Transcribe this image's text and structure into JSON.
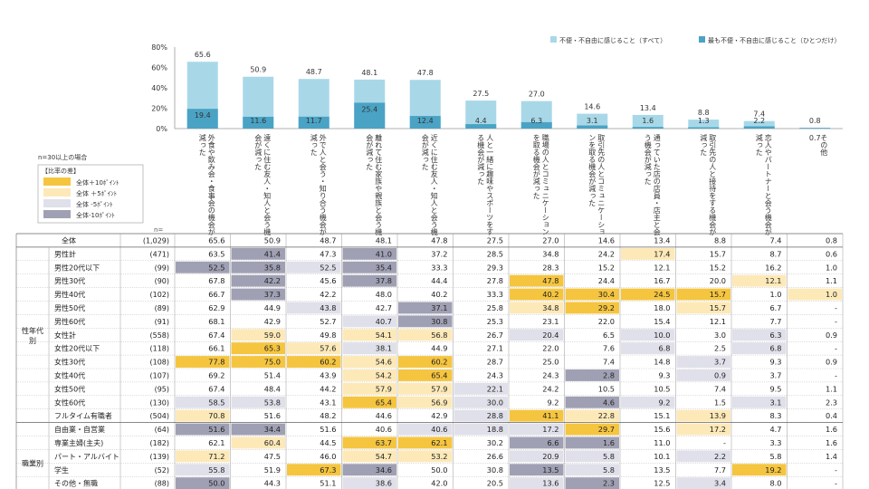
{
  "colors": {
    "bar_all": "#a8d8e8",
    "bar_most": "#4aa3c4",
    "high10": "#f5c540",
    "high5": "#fde9b8",
    "low5": "#e0e0ea",
    "low10": "#a0a0b4",
    "border": "#888888"
  },
  "chart_data": {
    "type": "bar",
    "ylim": [
      0,
      80
    ],
    "yticks": [
      "0%",
      "20%",
      "40%",
      "60%",
      "80%"
    ],
    "legend": {
      "all": "不便・不自由に感じること（すべて）",
      "most": "最も不便・不自由に感じること（ひとつだけ）"
    },
    "categories": [
      "外食や飲み会・食事会の機会が減った",
      "遠くに住む友人・知人と会う機会が減った",
      "外で人と会う・知り合う機会が減った",
      "離れて住む家族や親族と会う機会が減った",
      "近くに住む友人・知人と会う機会が減った",
      "人と一緒に趣味やスポーツをする機会が減った",
      "職場の人とコミュニケーションを取る機会が減った",
      "取引先の人とコミュニケーションを取る機会が減った",
      "通っていた店の店員・店主と会う機会が減った",
      "取引先の人と接待をする機会が減った",
      "恋人やパートナーと会う機会が減った",
      "その他"
    ],
    "series": [
      {
        "name": "不便・不自由に感じること（すべて）",
        "values": [
          65.6,
          50.9,
          48.7,
          48.1,
          47.8,
          27.5,
          27.0,
          14.6,
          13.4,
          8.8,
          7.4,
          0.8
        ]
      },
      {
        "name": "最も不便・不自由に感じること（ひとつだけ）",
        "values": [
          19.4,
          11.6,
          11.7,
          25.4,
          12.4,
          4.4,
          6.3,
          3.1,
          1.6,
          1.3,
          2.2,
          0.7
        ]
      }
    ]
  },
  "side": {
    "note": "n=30以上の場合",
    "legend_title": "【比率の差】",
    "legend_items": [
      "全体＋10ﾎﾟｲﾝﾄ",
      "全体 ＋5ﾎﾟｲﾝﾄ",
      "全体 -5ﾎﾟｲﾝﾄ",
      "全体-10ﾎﾟｲﾝﾄ"
    ],
    "n_header": "n="
  },
  "table": {
    "groups": [
      {
        "label": "性年代別",
        "start": 1,
        "end": 13
      },
      {
        "label": "職業別",
        "start": 14,
        "end": 19
      }
    ],
    "rows": [
      {
        "label": "全体",
        "n": "(1,029)",
        "values": [
          "65.6",
          "50.9",
          "48.7",
          "48.1",
          "47.8",
          "27.5",
          "27.0",
          "14.6",
          "13.4",
          "8.8",
          "7.4",
          "0.8"
        ],
        "shade": "000000000000"
      },
      {
        "label": "男性計",
        "n": "(471)",
        "values": [
          "63.5",
          "41.4",
          "47.3",
          "41.0",
          "37.2",
          "28.5",
          "34.8",
          "24.2",
          "17.4",
          "15.7",
          "8.7",
          "0.6"
        ],
        "shade": "0d0d5015000a0"
      },
      {
        "label": "男性20代以下",
        "n": "(99)",
        "values": [
          "52.5",
          "35.8",
          "52.5",
          "35.4",
          "33.3",
          "29.3",
          "28.3",
          "15.2",
          "12.1",
          "15.2",
          "16.2",
          "1.0"
        ],
        "shade": "ddbd10000000"
      },
      {
        "label": "男性30代",
        "n": "(90)",
        "values": [
          "67.8",
          "42.2",
          "45.6",
          "37.8",
          "44.4",
          "27.8",
          "47.8",
          "24.4",
          "16.7",
          "20.0",
          "12.1",
          "1.1"
        ],
        "shade": "0d0d00h0100a0"
      },
      {
        "label": "男性40代",
        "n": "(102)",
        "values": [
          "66.7",
          "37.3",
          "42.2",
          "48.0",
          "40.2",
          "33.3",
          "40.2",
          "30.4",
          "24.5",
          "15.7",
          "1.0",
          "1.0"
        ],
        "shade": "0d0000hhhh0a0"
      },
      {
        "label": "男性50代",
        "n": "(89)",
        "values": [
          "62.9",
          "44.9",
          "43.8",
          "42.7",
          "37.1",
          "25.8",
          "34.8",
          "29.2",
          "18.0",
          "15.7",
          "6.7",
          "-"
        ],
        "shade": "00b0d0ah0a0"
      },
      {
        "label": "男性60代",
        "n": "(91)",
        "values": [
          "68.1",
          "42.9",
          "52.7",
          "40.7",
          "30.8",
          "25.3",
          "23.1",
          "22.0",
          "15.4",
          "12.1",
          "7.7",
          "-"
        ],
        "shade": "000bd0000000"
      },
      {
        "label": "女性計",
        "n": "(558)",
        "values": [
          "67.4",
          "59.0",
          "49.8",
          "54.1",
          "56.8",
          "26.7",
          "20.4",
          "6.5",
          "10.0",
          "3.0",
          "6.3",
          "0.9"
        ],
        "shade": "0a0aa0b0b0b0"
      },
      {
        "label": "女性20代以下",
        "n": "(118)",
        "values": [
          "66.1",
          "65.3",
          "57.6",
          "38.1",
          "44.9",
          "27.1",
          "22.0",
          "7.6",
          "6.8",
          "2.5",
          "6.8",
          "-"
        ],
        "shade": "0hab0000b0b0"
      },
      {
        "label": "女性30代",
        "n": "(108)",
        "values": [
          "77.8",
          "75.0",
          "60.2",
          "54.6",
          "60.2",
          "28.7",
          "25.0",
          "7.4",
          "14.8",
          "3.7",
          "9.3",
          "0.9"
        ],
        "shade": "hhhah0000b00"
      },
      {
        "label": "女性40代",
        "n": "(107)",
        "values": [
          "69.2",
          "51.4",
          "43.9",
          "54.2",
          "65.4",
          "24.3",
          "24.3",
          "2.8",
          "9.3",
          "0.9",
          "3.7",
          "-"
        ],
        "shade": "000ah00d0b00"
      },
      {
        "label": "女性50代",
        "n": "(95)",
        "values": [
          "67.4",
          "48.4",
          "44.2",
          "57.9",
          "57.9",
          "22.1",
          "24.2",
          "10.5",
          "10.5",
          "7.4",
          "9.5",
          "1.1"
        ],
        "shade": "000aab000000"
      },
      {
        "label": "女性60代",
        "n": "(130)",
        "values": [
          "58.5",
          "53.8",
          "43.1",
          "65.4",
          "56.9",
          "30.0",
          "9.2",
          "4.6",
          "9.2",
          "1.5",
          "3.1",
          "2.3"
        ],
        "shade": "bb0hab0db0b0"
      },
      {
        "label": "フルタイム有職者",
        "n": "(504)",
        "values": [
          "70.8",
          "51.6",
          "48.2",
          "44.6",
          "42.9",
          "28.8",
          "41.1",
          "22.8",
          "15.1",
          "13.9",
          "8.3",
          "0.4"
        ],
        "shade": "a0000bha0a00"
      },
      {
        "label": "自由業・自営業",
        "n": "(64)",
        "values": [
          "51.6",
          "34.4",
          "51.6",
          "40.6",
          "40.6",
          "18.8",
          "17.2",
          "29.7",
          "15.6",
          "17.2",
          "4.7",
          "1.6"
        ],
        "shade": "dd00bbbh0a00"
      },
      {
        "label": "専業主婦(主夫)",
        "n": "(182)",
        "values": [
          "62.1",
          "60.4",
          "44.5",
          "63.7",
          "62.1",
          "30.2",
          "6.6",
          "1.6",
          "11.0",
          "-",
          "3.3",
          "1.6"
        ],
        "shade": "0a0hh0dd0000"
      },
      {
        "label": "パート・アルバイト",
        "n": "(139)",
        "values": [
          "71.2",
          "47.5",
          "46.0",
          "54.7",
          "53.2",
          "26.6",
          "20.9",
          "5.8",
          "10.1",
          "2.2",
          "5.8",
          "1.4"
        ],
        "shade": "a00aa0bb0b00"
      },
      {
        "label": "学生",
        "n": "(52)",
        "values": [
          "55.8",
          "51.9",
          "67.3",
          "34.6",
          "50.0",
          "30.8",
          "13.5",
          "5.8",
          "13.5",
          "7.7",
          "19.2",
          "-"
        ],
        "shade": "b0hd00db00h0"
      },
      {
        "label": "その他・無職",
        "n": "(88)",
        "values": [
          "50.0",
          "44.3",
          "51.1",
          "38.6",
          "42.0",
          "20.5",
          "13.6",
          "2.3",
          "12.5",
          "3.4",
          "8.0",
          "-"
        ],
        "shade": "d00b00bd0b00"
      }
    ]
  }
}
